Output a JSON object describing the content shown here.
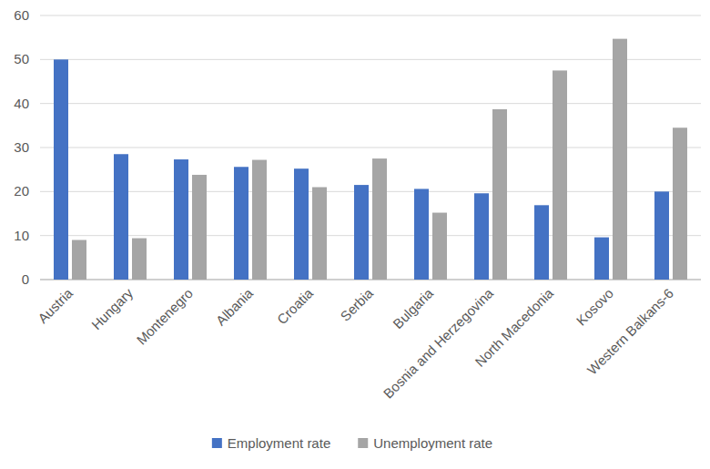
{
  "chart_data": {
    "type": "bar",
    "categories": [
      "Austria",
      "Hungary",
      "Montenegro",
      "Albania",
      "Croatia",
      "Serbia",
      "Bulgaria",
      "Bosnia and Herzegovina",
      "North Macedonia",
      "Kosovo",
      "Western Balkans-6"
    ],
    "series": [
      {
        "name": "Employment rate",
        "color": "#4472c4",
        "values": [
          50,
          28.5,
          27.3,
          25.6,
          25.2,
          21.5,
          20.6,
          19.6,
          16.9,
          9.6,
          20
        ]
      },
      {
        "name": "Unemployment rate",
        "color": "#a5a5a5",
        "values": [
          9,
          9.4,
          23.8,
          27.2,
          21,
          27.5,
          15.2,
          38.7,
          47.5,
          54.7,
          34.5
        ]
      }
    ],
    "ylim": [
      0,
      60
    ],
    "yticks": [
      0,
      10,
      20,
      30,
      40,
      50,
      60
    ],
    "grid": true,
    "legend": "bottom"
  }
}
